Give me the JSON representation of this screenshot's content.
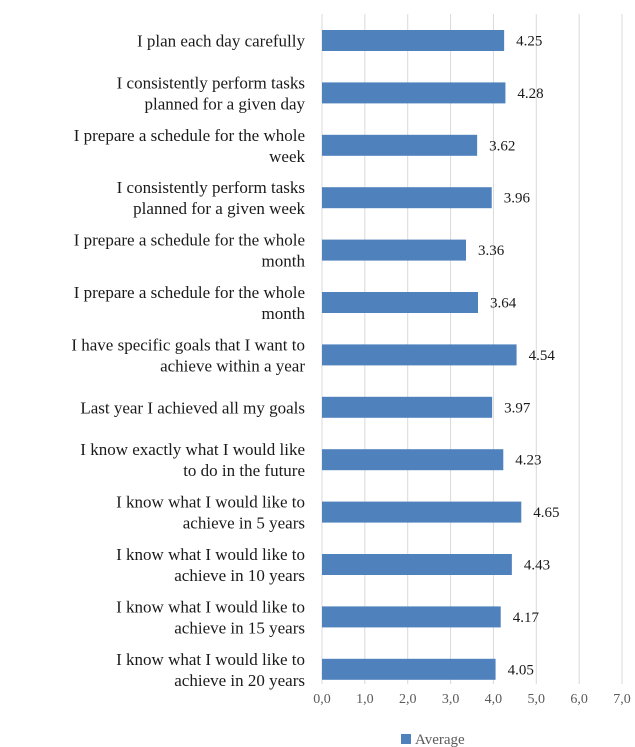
{
  "chart_data": {
    "type": "bar",
    "orientation": "horizontal",
    "categories": [
      "I plan each day carefully",
      "I consistently perform tasks planned for a given day",
      "I prepare a schedule for the whole week",
      "I consistently perform tasks planned for a given week",
      "I prepare a schedule for the whole month",
      "I prepare a schedule for the whole month",
      "I have specific goals that I want to achieve within a year",
      "Last year I achieved all my goals",
      "I know exactly what I would like to do in the future",
      "I know what I would like to achieve in 5 years",
      "I know what I would like to achieve in 10 years",
      "I know what I would like to achieve in 15 years",
      "I know what I would like to achieve in 20 years"
    ],
    "category_lines": [
      [
        "I plan each day carefully"
      ],
      [
        "I consistently perform tasks",
        "planned for a given day"
      ],
      [
        "I prepare a schedule for the whole",
        "week"
      ],
      [
        "I consistently perform tasks",
        "planned for a given week"
      ],
      [
        "I prepare a schedule for the whole",
        "month"
      ],
      [
        "I prepare a schedule for the whole",
        "month"
      ],
      [
        "I have specific goals that I want to",
        "achieve within a year"
      ],
      [
        "Last year I achieved all my goals"
      ],
      [
        "I know exactly what I would like",
        "to do in the future"
      ],
      [
        "I know what I would like to",
        "achieve in 5 years"
      ],
      [
        "I know what I would like to",
        "achieve in 10 years"
      ],
      [
        "I know what I would like to",
        "achieve in 15 years"
      ],
      [
        "I know what I would like to",
        "achieve in 20 years"
      ]
    ],
    "series": [
      {
        "name": "Average",
        "color": "#4f81bd",
        "values": [
          4.25,
          4.28,
          3.62,
          3.96,
          3.36,
          3.64,
          4.54,
          3.97,
          4.23,
          4.65,
          4.43,
          4.17,
          4.05
        ],
        "value_labels": [
          "4.25",
          "4.28",
          "3.62",
          "3.96",
          "3.36",
          "3.64",
          "4.54",
          "3.97",
          "4.23",
          "4.65",
          "4.43",
          "4.17",
          "4.05"
        ]
      }
    ],
    "xlim": [
      0,
      7
    ],
    "x_ticks": [
      0,
      1,
      2,
      3,
      4,
      5,
      6,
      7
    ],
    "x_tick_labels": [
      "0,0",
      "1,0",
      "2,0",
      "3,0",
      "4,0",
      "5,0",
      "6,0",
      "7,0"
    ],
    "grid": true,
    "legend_position": "bottom",
    "title": "",
    "xlabel": "",
    "ylabel": ""
  }
}
